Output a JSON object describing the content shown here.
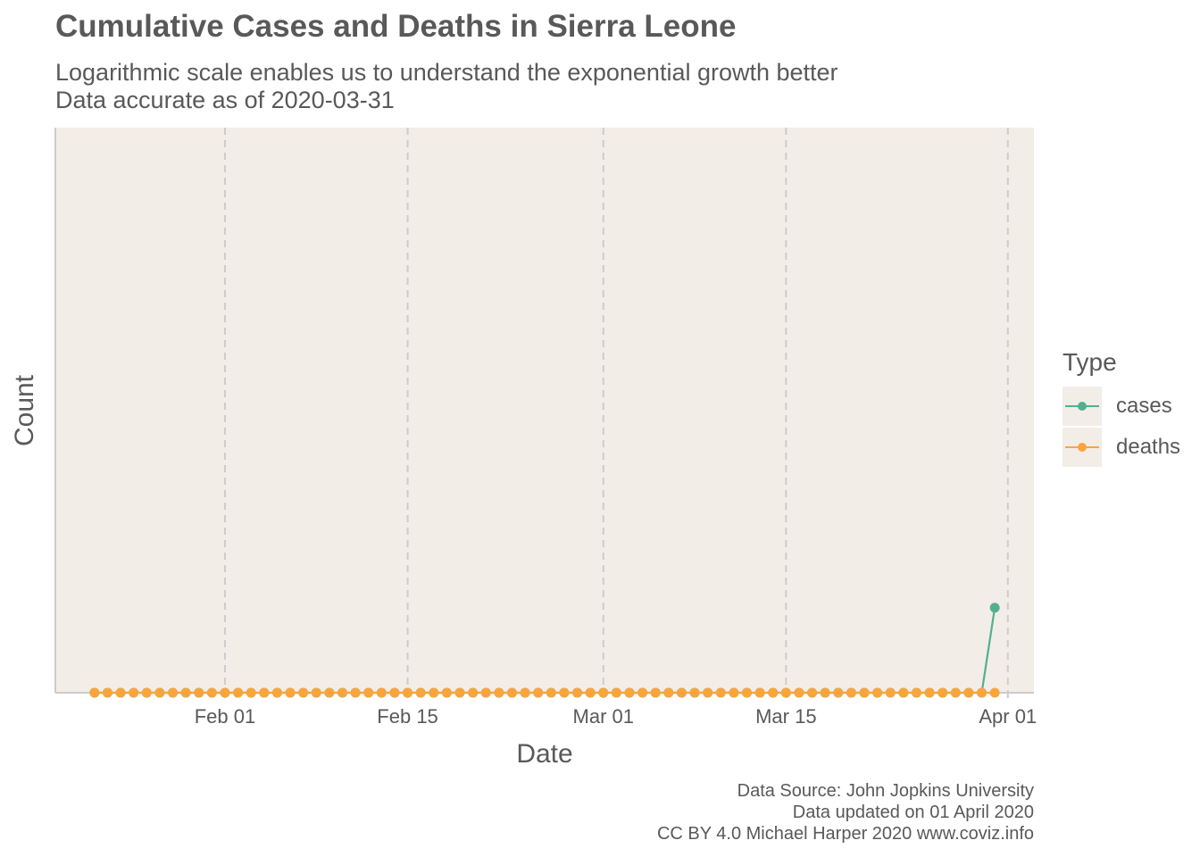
{
  "chart_data": {
    "type": "line",
    "title": "Cumulative Cases and Deaths in Sierra Leone",
    "subtitle": [
      "Logarithmic scale enables us to understand the exponential growth better",
      "Data accurate as of 2020-03-31"
    ],
    "xlabel": "Date",
    "ylabel": "Count",
    "y_scale": "log",
    "x_ticks": [
      {
        "date": "2020-02-01",
        "label": "Feb 01"
      },
      {
        "date": "2020-02-15",
        "label": "Feb 15"
      },
      {
        "date": "2020-03-01",
        "label": "Mar 01"
      },
      {
        "date": "2020-03-15",
        "label": "Mar 15"
      },
      {
        "date": "2020-04-01",
        "label": "Apr 01"
      }
    ],
    "xlim": [
      "2020-01-19",
      "2020-04-03"
    ],
    "date_range": [
      "2020-01-22",
      "2020-03-31"
    ],
    "grid": "vertical major gridlines, dashed",
    "legend": {
      "title": "Type",
      "position": "right"
    },
    "series": [
      {
        "name": "cases",
        "color": "#52b08f",
        "values": [
          {
            "date": "2020-01-22 .. 2020-03-30",
            "value": 0
          },
          {
            "date": "2020-03-31",
            "value": 1
          }
        ]
      },
      {
        "name": "deaths",
        "color": "#f9a53c",
        "values": [
          {
            "date": "2020-01-22 .. 2020-03-31",
            "value": 0
          }
        ]
      }
    ],
    "caption": [
      "Data Source: John Jopkins University",
      "Data updated on 01 April 2020",
      "CC BY 4.0 Michael Harper 2020 www.coviz.info"
    ],
    "colors": {
      "panel_background": "#f3ede7",
      "grid": "#cccccc",
      "axis": "#cccccc",
      "text": "#595959"
    }
  }
}
